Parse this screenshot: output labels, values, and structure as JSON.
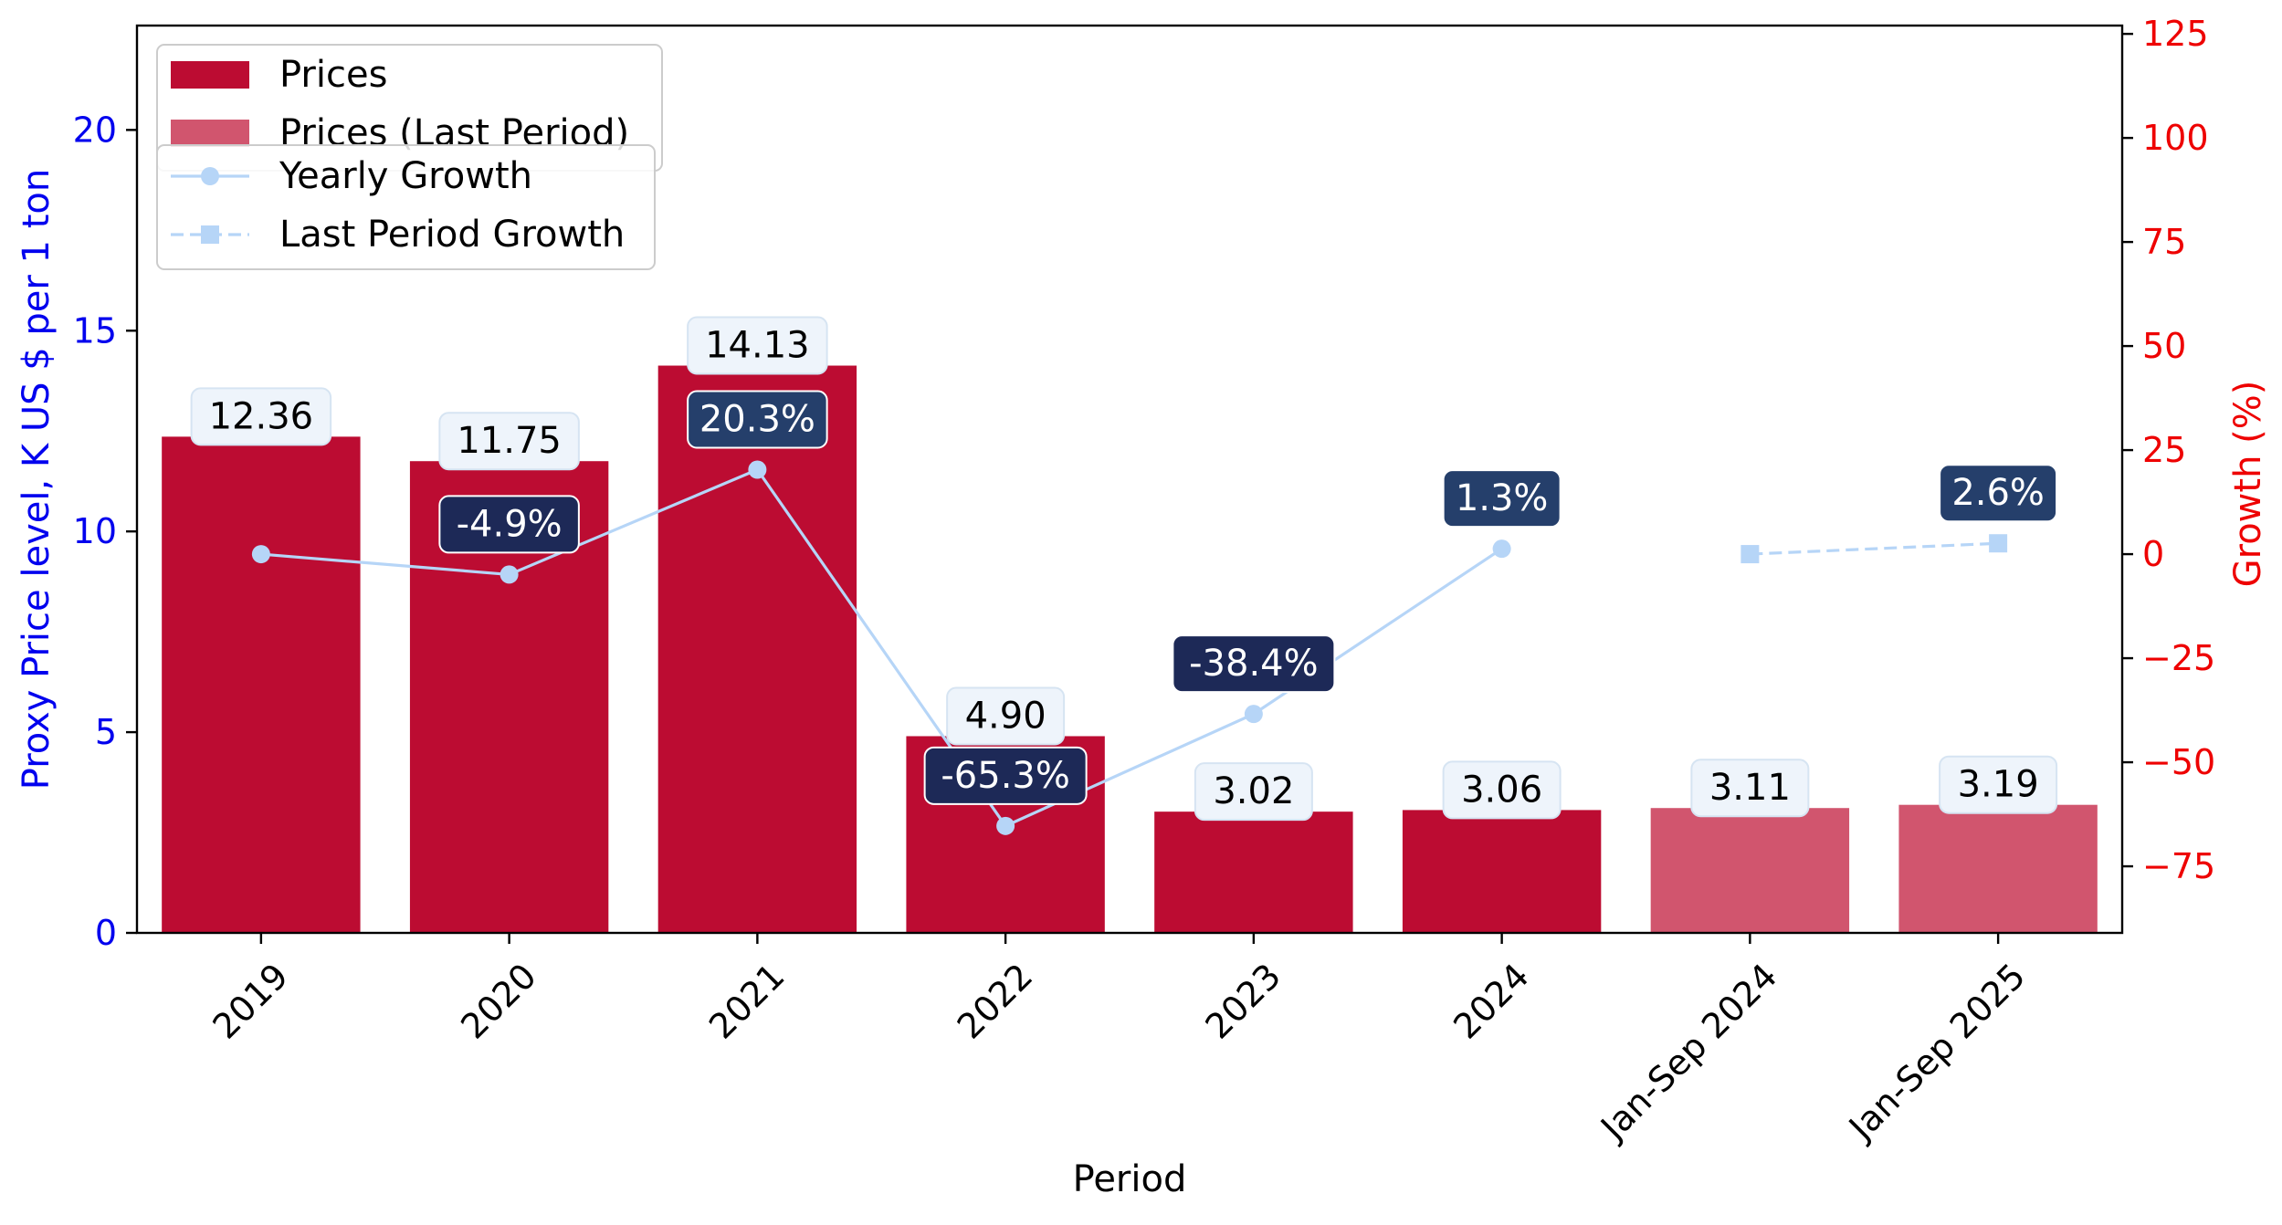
{
  "chart_data": {
    "type": "bar",
    "categories": [
      "2019",
      "2020",
      "2021",
      "2022",
      "2023",
      "2024",
      "Jan-Sep 2024",
      "Jan-Sep 2025"
    ],
    "series": [
      {
        "name": "Prices",
        "axis": "left",
        "color": "#bc0c32",
        "values": [
          12.36,
          11.75,
          14.13,
          4.9,
          3.02,
          3.06,
          null,
          null
        ],
        "labels": [
          "12.36",
          "11.75",
          "14.13",
          "4.90",
          "3.02",
          "3.06",
          null,
          null
        ]
      },
      {
        "name": "Prices (Last Period)",
        "axis": "left",
        "color": "#d1556e",
        "values": [
          null,
          null,
          null,
          null,
          null,
          null,
          3.11,
          3.19
        ],
        "labels": [
          null,
          null,
          null,
          null,
          null,
          null,
          "3.11",
          "3.19"
        ]
      },
      {
        "name": "Yearly Growth",
        "type": "line",
        "axis": "right",
        "color": "#b6d5f7",
        "marker": "circle",
        "values": [
          0,
          -4.9,
          20.3,
          -65.3,
          -38.4,
          1.3,
          null,
          null
        ],
        "labels": [
          null,
          "-4.9%",
          "20.3%",
          "-65.3%",
          "-38.4%",
          "1.3%",
          null,
          null
        ]
      },
      {
        "name": "Last Period Growth",
        "type": "line",
        "axis": "right",
        "color": "#b6d5f7",
        "marker": "square",
        "dashed": true,
        "values": [
          null,
          null,
          null,
          null,
          null,
          null,
          0,
          2.6
        ],
        "labels": [
          null,
          null,
          null,
          null,
          null,
          null,
          null,
          "2.6%"
        ]
      }
    ],
    "xlabel": "Period",
    "ylabel": "Proxy Price level, K US $ per 1 ton",
    "ylabel_color": "#0000ee",
    "ylim": [
      0,
      22.6
    ],
    "yticks": [
      0,
      5,
      10,
      15,
      20
    ],
    "y2label": "Growth (%)",
    "y2label_color": "#ee0000",
    "y2lim": [
      -91,
      127
    ],
    "y2ticks": [
      -75,
      -50,
      -25,
      0,
      25,
      50,
      75,
      100,
      125
    ],
    "y2tick_labels": [
      "−75",
      "−50",
      "−25",
      "0",
      "25",
      "50",
      "75",
      "100",
      "125"
    ],
    "growth_label_colors": {
      "negative": "#1d2957",
      "positive": "#253f6b"
    },
    "legend": "top-left",
    "grid": false
  }
}
